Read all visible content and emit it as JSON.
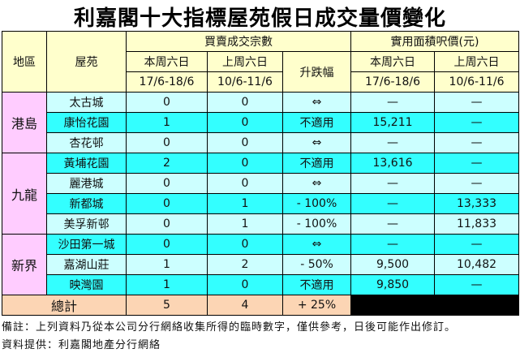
{
  "title": "利嘉閣十大指標屋苑假日成交量價變化",
  "header": {
    "region": "地區",
    "estate": "屋苑",
    "transactions": "買賣成交宗數",
    "price": "實用面積呎價(元)",
    "this_week": "本周六日",
    "last_week": "上周六日",
    "this_dates": "17/6-18/6",
    "last_dates": "10/6-11/6",
    "change": "升跌幅"
  },
  "regions": [
    {
      "name": "港島",
      "rows": [
        {
          "estate": "太古城",
          "this": "0",
          "last": "0",
          "change": "⇔",
          "price_this": "—",
          "price_last": "—"
        },
        {
          "estate": "康怡花園",
          "this": "1",
          "last": "0",
          "change": "不適用",
          "price_this": "15,211",
          "price_last": "—"
        },
        {
          "estate": "杏花邨",
          "this": "0",
          "last": "0",
          "change": "⇔",
          "price_this": "—",
          "price_last": "—"
        }
      ]
    },
    {
      "name": "九龍",
      "rows": [
        {
          "estate": "黃埔花園",
          "this": "2",
          "last": "0",
          "change": "不適用",
          "price_this": "13,616",
          "price_last": "—"
        },
        {
          "estate": "麗港城",
          "this": "0",
          "last": "0",
          "change": "⇔",
          "price_this": "—",
          "price_last": "—"
        },
        {
          "estate": "新都城",
          "this": "0",
          "last": "1",
          "change": "- 100%",
          "price_this": "—",
          "price_last": "13,333"
        },
        {
          "estate": "美孚新邨",
          "this": "0",
          "last": "1",
          "change": "- 100%",
          "price_this": "—",
          "price_last": "11,833"
        }
      ]
    },
    {
      "name": "新界",
      "rows": [
        {
          "estate": "沙田第一城",
          "this": "0",
          "last": "0",
          "change": "⇔",
          "price_this": "—",
          "price_last": "—"
        },
        {
          "estate": "嘉湖山莊",
          "this": "1",
          "last": "2",
          "change": "- 50%",
          "price_this": "9,500",
          "price_last": "10,482"
        },
        {
          "estate": "映灣園",
          "this": "1",
          "last": "0",
          "change": "不適用",
          "price_this": "9,850",
          "price_last": "—"
        }
      ]
    }
  ],
  "total": {
    "label": "總計",
    "this": "5",
    "last": "4",
    "change": "+ 25%"
  },
  "notes": {
    "remark": "備註：上列資料乃從本公司分行網絡收集所得的臨時數字，僅供參考，日後可能作出修訂。",
    "source": "資料提供：利嘉閣地產分行網絡"
  },
  "colors": {
    "header": "#ffffcc",
    "region": "#ffccff",
    "row_light": "#ccffff",
    "row_dark": "#33ffff",
    "total": "#fcd5b4"
  }
}
